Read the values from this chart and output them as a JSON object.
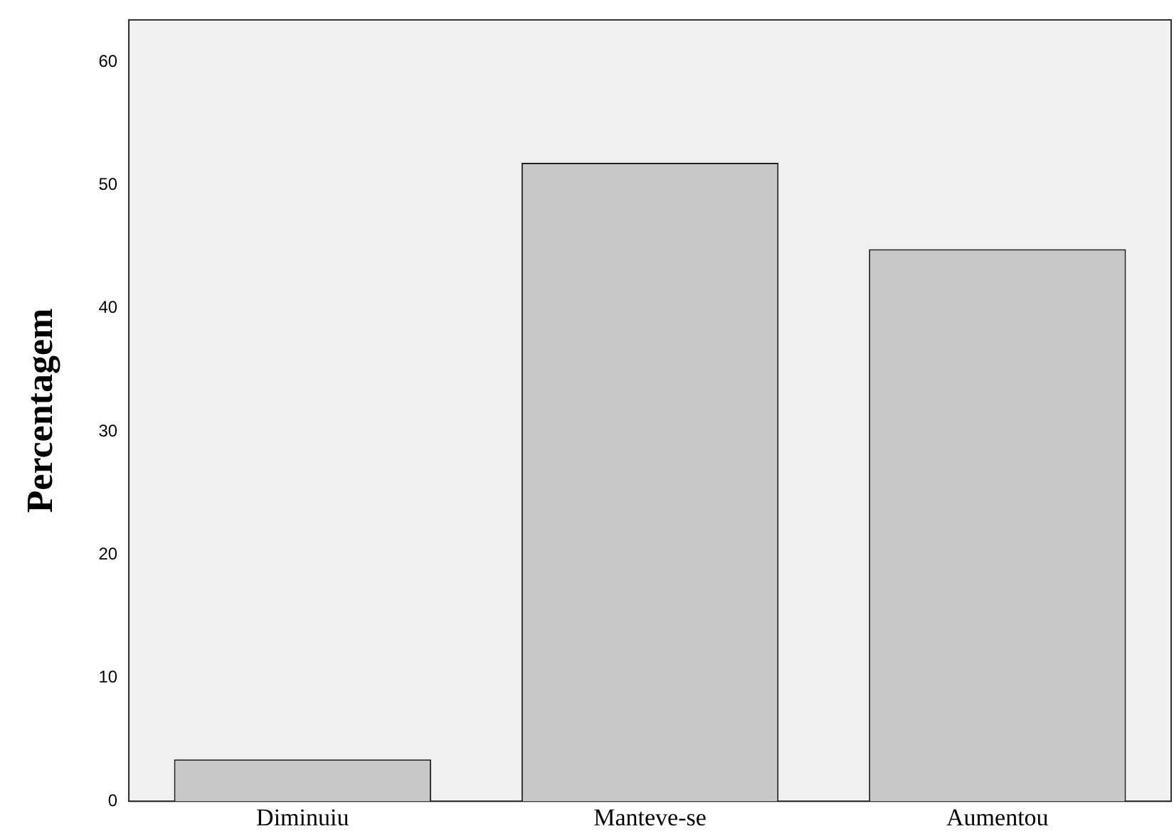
{
  "chart_data": {
    "type": "bar",
    "ylabel": "Percentagem",
    "categories": [
      "Diminuiu",
      "Manteve-se",
      "Aumentou"
    ],
    "values": [
      3.4,
      51.8,
      44.8
    ],
    "color": "#c8c8c8",
    "ylim": [
      0,
      63.4
    ],
    "yticks": [
      0,
      10,
      20,
      30,
      40,
      50,
      60
    ],
    "grid": false,
    "legend": false
  }
}
